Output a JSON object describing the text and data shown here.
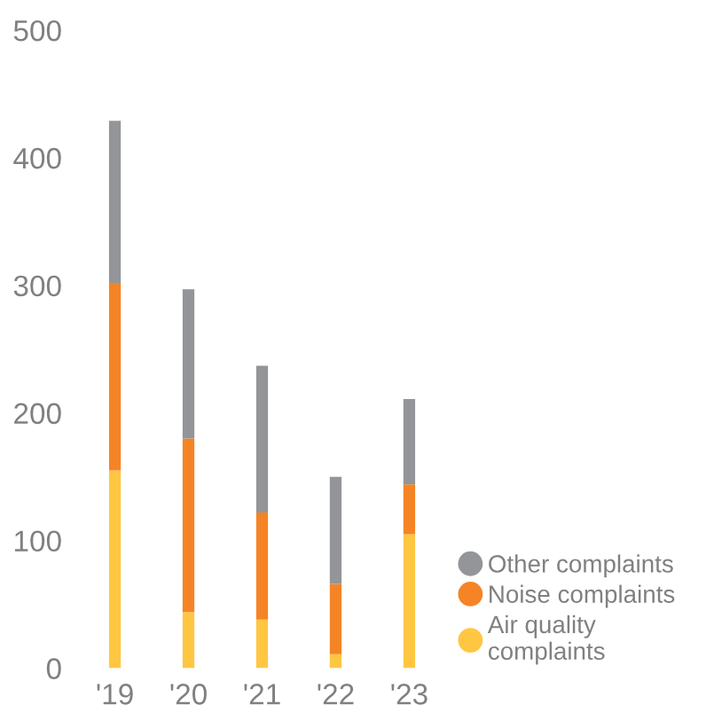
{
  "chart_data": {
    "type": "bar",
    "stacked": true,
    "categories": [
      "'19",
      "'20",
      "'21",
      "'22",
      "'23"
    ],
    "series": [
      {
        "name": "Air quality\ncomplaints",
        "color": "#ffc642",
        "values": [
          155,
          44,
          38,
          11,
          105
        ]
      },
      {
        "name": "Noise complaints",
        "color": "#f58426",
        "values": [
          147,
          136,
          84,
          55,
          39
        ]
      },
      {
        "name": "Other complaints",
        "color": "#939598",
        "values": [
          127,
          117,
          115,
          84,
          67
        ]
      }
    ],
    "ylim": [
      0,
      500
    ],
    "yticks": [
      0,
      100,
      200,
      300,
      400,
      500
    ],
    "grid": false,
    "legend": "bottom right"
  }
}
